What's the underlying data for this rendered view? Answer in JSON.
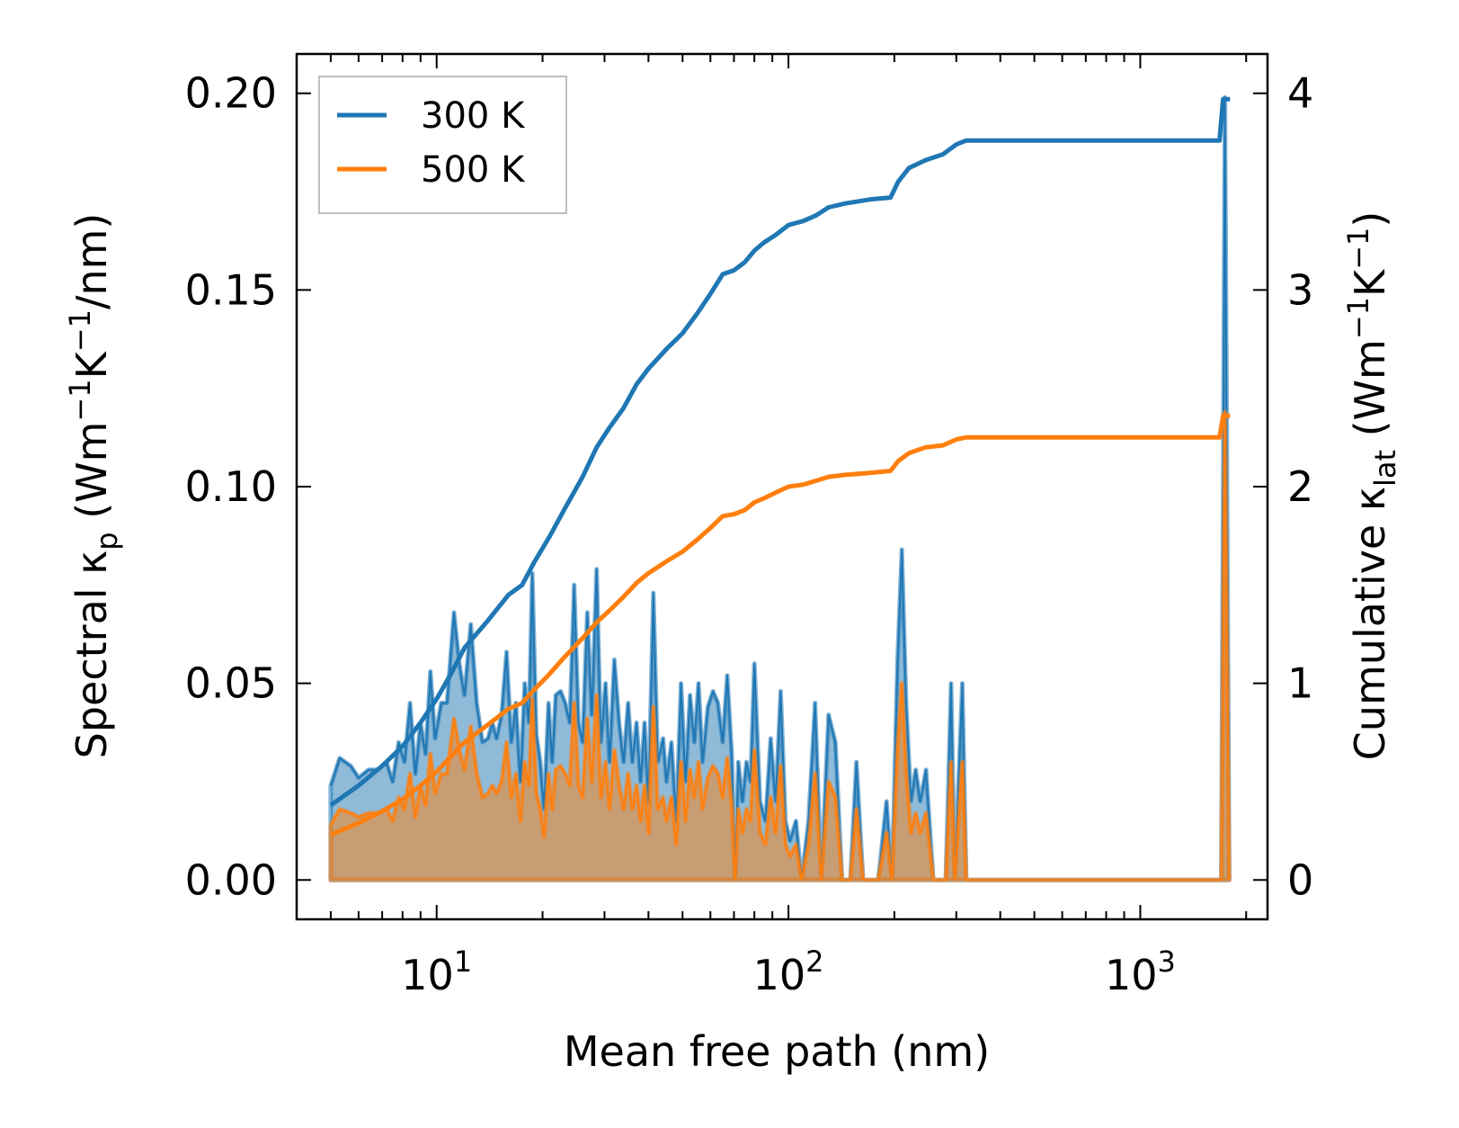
{
  "chart_data": {
    "type": "line",
    "xlabel": "Mean free path (nm)",
    "xscale": "log",
    "xlim": [
      4.0,
      2300
    ],
    "x_ticks": [
      {
        "value": 10,
        "base": "10",
        "exp": "1"
      },
      {
        "value": 100,
        "base": "10",
        "exp": "2"
      },
      {
        "value": 1000,
        "base": "10",
        "exp": "3"
      }
    ],
    "ylabel_left": {
      "pre": "Spectral κ",
      "sub": "p",
      "mid1": " (Wm",
      "sup1": "−1",
      "mid2": "K",
      "sup2": "−1",
      "post": "/nm)"
    },
    "ylabel_right": {
      "pre": "Cumulative κ",
      "sub": "lat",
      "mid1": " (Wm",
      "sup1": "−1",
      "mid2": "K",
      "sup2": "−1",
      "post": ")"
    },
    "ylim_left": [
      -0.01,
      0.21
    ],
    "ylim_right": [
      -0.2,
      4.2
    ],
    "y_ticks_left": [
      "0.00",
      "0.05",
      "0.10",
      "0.15",
      "0.20"
    ],
    "y_ticks_right": [
      "0",
      "1",
      "2",
      "3",
      "4"
    ],
    "legend": {
      "position": "upper-left",
      "entries": [
        {
          "label": "300 K",
          "color": "#1f77b4"
        },
        {
          "label": "500 K",
          "color": "#ff7f0e"
        }
      ]
    },
    "colors": {
      "300K": "#1f77b4",
      "500K": "#ff7f0e",
      "fill_300K": "#1f77b4",
      "fill_500K": "#ff7f0e"
    },
    "spectral_300K": [
      [
        5.0,
        0.024
      ],
      [
        5.3,
        0.031
      ],
      [
        5.7,
        0.029
      ],
      [
        6.0,
        0.026
      ],
      [
        6.4,
        0.028
      ],
      [
        6.8,
        0.028
      ],
      [
        7.2,
        0.03
      ],
      [
        7.5,
        0.025
      ],
      [
        7.8,
        0.035
      ],
      [
        8.1,
        0.03
      ],
      [
        8.4,
        0.045
      ],
      [
        8.7,
        0.027
      ],
      [
        9.0,
        0.04
      ],
      [
        9.3,
        0.032
      ],
      [
        9.6,
        0.053
      ],
      [
        9.9,
        0.036
      ],
      [
        10.3,
        0.045
      ],
      [
        10.7,
        0.045
      ],
      [
        11.2,
        0.068
      ],
      [
        11.6,
        0.055
      ],
      [
        12.0,
        0.047
      ],
      [
        12.5,
        0.065
      ],
      [
        13.0,
        0.045
      ],
      [
        13.5,
        0.035
      ],
      [
        14.0,
        0.036
      ],
      [
        14.4,
        0.04
      ],
      [
        14.8,
        0.036
      ],
      [
        15.3,
        0.042
      ],
      [
        15.8,
        0.058
      ],
      [
        16.3,
        0.035
      ],
      [
        16.8,
        0.045
      ],
      [
        17.3,
        0.025
      ],
      [
        17.8,
        0.05
      ],
      [
        18.3,
        0.04
      ],
      [
        18.7,
        0.078
      ],
      [
        19.2,
        0.037
      ],
      [
        19.7,
        0.03
      ],
      [
        20.2,
        0.018
      ],
      [
        20.8,
        0.045
      ],
      [
        21.3,
        0.03
      ],
      [
        21.8,
        0.047
      ],
      [
        22.5,
        0.048
      ],
      [
        23.2,
        0.045
      ],
      [
        23.9,
        0.04
      ],
      [
        24.6,
        0.075
      ],
      [
        25.3,
        0.04
      ],
      [
        26.0,
        0.035
      ],
      [
        26.8,
        0.068
      ],
      [
        27.6,
        0.042
      ],
      [
        28.5,
        0.079
      ],
      [
        29.3,
        0.035
      ],
      [
        30.2,
        0.05
      ],
      [
        31.0,
        0.03
      ],
      [
        32.0,
        0.056
      ],
      [
        33.0,
        0.04
      ],
      [
        34.0,
        0.03
      ],
      [
        35.0,
        0.045
      ],
      [
        36.0,
        0.03
      ],
      [
        37.0,
        0.04
      ],
      [
        38.0,
        0.025
      ],
      [
        39.0,
        0.04
      ],
      [
        40.0,
        0.02
      ],
      [
        41.3,
        0.073
      ],
      [
        42.5,
        0.03
      ],
      [
        44.0,
        0.036
      ],
      [
        45.0,
        0.025
      ],
      [
        46.5,
        0.035
      ],
      [
        48.0,
        0.015
      ],
      [
        49.5,
        0.05
      ],
      [
        51.0,
        0.025
      ],
      [
        52.5,
        0.047
      ],
      [
        54.0,
        0.035
      ],
      [
        55.5,
        0.05
      ],
      [
        57.0,
        0.03
      ],
      [
        59.0,
        0.044
      ],
      [
        61.0,
        0.048
      ],
      [
        63.0,
        0.045
      ],
      [
        65.0,
        0.035
      ],
      [
        67.0,
        0.052
      ],
      [
        69.0,
        0.032
      ],
      [
        70.5,
        0.0
      ],
      [
        72.0,
        0.03
      ],
      [
        74.0,
        0.02
      ],
      [
        76.0,
        0.03
      ],
      [
        78.0,
        0.025
      ],
      [
        80.0,
        0.055
      ],
      [
        83.0,
        0.02
      ],
      [
        86.0,
        0.015
      ],
      [
        89.0,
        0.036
      ],
      [
        92.0,
        0.02
      ],
      [
        95.0,
        0.048
      ],
      [
        98.0,
        0.015
      ],
      [
        101.0,
        0.01
      ],
      [
        105.0,
        0.015
      ],
      [
        109.0,
        0.0
      ],
      [
        114.0,
        0.015
      ],
      [
        119.0,
        0.045
      ],
      [
        124.0,
        0.0
      ],
      [
        130.0,
        0.042
      ],
      [
        136.0,
        0.035
      ],
      [
        142.0,
        0.0
      ],
      [
        150.0,
        0.0
      ],
      [
        156.0,
        0.03
      ],
      [
        163.0,
        0.0
      ],
      [
        180.0,
        0.0
      ],
      [
        190.0,
        0.02
      ],
      [
        197.0,
        0.0
      ],
      [
        204.0,
        0.055
      ],
      [
        210.0,
        0.084
      ],
      [
        216.0,
        0.045
      ],
      [
        223.0,
        0.02
      ],
      [
        230.0,
        0.028
      ],
      [
        237.0,
        0.02
      ],
      [
        246.0,
        0.028
      ],
      [
        258.0,
        0.0
      ],
      [
        280.0,
        0.0
      ],
      [
        290.0,
        0.05
      ],
      [
        297.0,
        0.0
      ],
      [
        312.0,
        0.05
      ],
      [
        320.0,
        0.0
      ],
      [
        1700,
        0.0
      ],
      [
        1740,
        0.199
      ],
      [
        1790,
        0.0
      ]
    ],
    "spectral_500K": [
      [
        5.0,
        0.014
      ],
      [
        5.3,
        0.018
      ],
      [
        5.7,
        0.017
      ],
      [
        6.0,
        0.016
      ],
      [
        6.4,
        0.017
      ],
      [
        6.8,
        0.017
      ],
      [
        7.2,
        0.018
      ],
      [
        7.5,
        0.015
      ],
      [
        7.8,
        0.021
      ],
      [
        8.1,
        0.018
      ],
      [
        8.4,
        0.027
      ],
      [
        8.7,
        0.016
      ],
      [
        9.0,
        0.024
      ],
      [
        9.3,
        0.019
      ],
      [
        9.6,
        0.032
      ],
      [
        9.9,
        0.022
      ],
      [
        10.3,
        0.027
      ],
      [
        10.7,
        0.027
      ],
      [
        11.2,
        0.041
      ],
      [
        11.6,
        0.033
      ],
      [
        12.0,
        0.028
      ],
      [
        12.5,
        0.039
      ],
      [
        13.0,
        0.027
      ],
      [
        13.5,
        0.021
      ],
      [
        14.0,
        0.022
      ],
      [
        14.4,
        0.024
      ],
      [
        14.8,
        0.022
      ],
      [
        15.3,
        0.025
      ],
      [
        15.8,
        0.035
      ],
      [
        16.3,
        0.021
      ],
      [
        16.8,
        0.027
      ],
      [
        17.3,
        0.015
      ],
      [
        17.8,
        0.03
      ],
      [
        18.3,
        0.024
      ],
      [
        18.7,
        0.046
      ],
      [
        19.2,
        0.022
      ],
      [
        19.7,
        0.018
      ],
      [
        20.2,
        0.011
      ],
      [
        20.8,
        0.027
      ],
      [
        21.3,
        0.018
      ],
      [
        21.8,
        0.028
      ],
      [
        22.5,
        0.029
      ],
      [
        23.2,
        0.027
      ],
      [
        23.9,
        0.024
      ],
      [
        24.6,
        0.045
      ],
      [
        25.3,
        0.024
      ],
      [
        26.0,
        0.021
      ],
      [
        26.8,
        0.041
      ],
      [
        27.6,
        0.025
      ],
      [
        28.5,
        0.047
      ],
      [
        29.3,
        0.021
      ],
      [
        30.2,
        0.03
      ],
      [
        31.0,
        0.018
      ],
      [
        32.0,
        0.033
      ],
      [
        33.0,
        0.024
      ],
      [
        34.0,
        0.018
      ],
      [
        35.0,
        0.027
      ],
      [
        36.0,
        0.018
      ],
      [
        37.0,
        0.024
      ],
      [
        38.0,
        0.015
      ],
      [
        39.0,
        0.024
      ],
      [
        40.0,
        0.012
      ],
      [
        41.3,
        0.044
      ],
      [
        42.5,
        0.018
      ],
      [
        44.0,
        0.021
      ],
      [
        45.0,
        0.015
      ],
      [
        46.5,
        0.021
      ],
      [
        48.0,
        0.009
      ],
      [
        49.5,
        0.03
      ],
      [
        51.0,
        0.015
      ],
      [
        52.5,
        0.028
      ],
      [
        54.0,
        0.021
      ],
      [
        55.5,
        0.03
      ],
      [
        57.0,
        0.018
      ],
      [
        59.0,
        0.026
      ],
      [
        61.0,
        0.029
      ],
      [
        63.0,
        0.027
      ],
      [
        65.0,
        0.021
      ],
      [
        67.0,
        0.031
      ],
      [
        69.0,
        0.019
      ],
      [
        70.5,
        0.0
      ],
      [
        72.0,
        0.018
      ],
      [
        74.0,
        0.012
      ],
      [
        76.0,
        0.018
      ],
      [
        78.0,
        0.015
      ],
      [
        80.0,
        0.033
      ],
      [
        83.0,
        0.012
      ],
      [
        86.0,
        0.009
      ],
      [
        89.0,
        0.021
      ],
      [
        92.0,
        0.012
      ],
      [
        95.0,
        0.029
      ],
      [
        98.0,
        0.009
      ],
      [
        101.0,
        0.006
      ],
      [
        105.0,
        0.009
      ],
      [
        109.0,
        0.0
      ],
      [
        114.0,
        0.009
      ],
      [
        119.0,
        0.027
      ],
      [
        124.0,
        0.0
      ],
      [
        130.0,
        0.025
      ],
      [
        136.0,
        0.021
      ],
      [
        142.0,
        0.0
      ],
      [
        150.0,
        0.0
      ],
      [
        156.0,
        0.018
      ],
      [
        163.0,
        0.0
      ],
      [
        180.0,
        0.0
      ],
      [
        190.0,
        0.012
      ],
      [
        197.0,
        0.0
      ],
      [
        204.0,
        0.033
      ],
      [
        210.0,
        0.05
      ],
      [
        216.0,
        0.027
      ],
      [
        223.0,
        0.012
      ],
      [
        230.0,
        0.017
      ],
      [
        237.0,
        0.012
      ],
      [
        246.0,
        0.017
      ],
      [
        258.0,
        0.0
      ],
      [
        280.0,
        0.0
      ],
      [
        290.0,
        0.03
      ],
      [
        297.0,
        0.0
      ],
      [
        312.0,
        0.03
      ],
      [
        320.0,
        0.0
      ],
      [
        1700,
        0.0
      ],
      [
        1740,
        0.119
      ],
      [
        1790,
        0.0
      ]
    ],
    "cumulative_300K": [
      [
        5.0,
        0.38
      ],
      [
        6.0,
        0.48
      ],
      [
        7.0,
        0.58
      ],
      [
        8.0,
        0.68
      ],
      [
        9.0,
        0.8
      ],
      [
        10.0,
        0.92
      ],
      [
        11.0,
        1.05
      ],
      [
        12.0,
        1.18
      ],
      [
        14.0,
        1.32
      ],
      [
        16.0,
        1.45
      ],
      [
        17.5,
        1.5
      ],
      [
        19.0,
        1.62
      ],
      [
        21.0,
        1.75
      ],
      [
        23.0,
        1.88
      ],
      [
        26.0,
        2.05
      ],
      [
        28.5,
        2.2
      ],
      [
        31.0,
        2.3
      ],
      [
        34.0,
        2.4
      ],
      [
        37.0,
        2.52
      ],
      [
        40.0,
        2.6
      ],
      [
        45.0,
        2.7
      ],
      [
        50.0,
        2.78
      ],
      [
        55.0,
        2.88
      ],
      [
        60.0,
        2.98
      ],
      [
        65.0,
        3.08
      ],
      [
        70.0,
        3.1
      ],
      [
        75.0,
        3.14
      ],
      [
        80.0,
        3.2
      ],
      [
        85.0,
        3.24
      ],
      [
        92.0,
        3.28
      ],
      [
        100.0,
        3.33
      ],
      [
        110.0,
        3.35
      ],
      [
        120.0,
        3.38
      ],
      [
        130.0,
        3.42
      ],
      [
        145.0,
        3.44
      ],
      [
        170.0,
        3.46
      ],
      [
        195.0,
        3.47
      ],
      [
        205.0,
        3.55
      ],
      [
        220.0,
        3.62
      ],
      [
        245.0,
        3.66
      ],
      [
        275.0,
        3.69
      ],
      [
        300.0,
        3.74
      ],
      [
        320.0,
        3.76
      ],
      [
        1680,
        3.76
      ],
      [
        1720,
        3.97
      ],
      [
        1800,
        3.97
      ]
    ],
    "cumulative_500K": [
      [
        5.0,
        0.23
      ],
      [
        6.0,
        0.29
      ],
      [
        7.0,
        0.35
      ],
      [
        8.0,
        0.41
      ],
      [
        9.0,
        0.48
      ],
      [
        10.0,
        0.55
      ],
      [
        11.0,
        0.63
      ],
      [
        12.0,
        0.7
      ],
      [
        14.0,
        0.79
      ],
      [
        16.0,
        0.87
      ],
      [
        17.5,
        0.9
      ],
      [
        19.0,
        0.97
      ],
      [
        21.0,
        1.05
      ],
      [
        23.0,
        1.13
      ],
      [
        26.0,
        1.23
      ],
      [
        28.5,
        1.31
      ],
      [
        31.0,
        1.37
      ],
      [
        34.0,
        1.44
      ],
      [
        37.0,
        1.51
      ],
      [
        40.0,
        1.56
      ],
      [
        45.0,
        1.62
      ],
      [
        50.0,
        1.67
      ],
      [
        55.0,
        1.73
      ],
      [
        60.0,
        1.79
      ],
      [
        65.0,
        1.85
      ],
      [
        70.0,
        1.86
      ],
      [
        75.0,
        1.88
      ],
      [
        80.0,
        1.92
      ],
      [
        85.0,
        1.94
      ],
      [
        92.0,
        1.97
      ],
      [
        100.0,
        2.0
      ],
      [
        110.0,
        2.01
      ],
      [
        120.0,
        2.03
      ],
      [
        130.0,
        2.05
      ],
      [
        145.0,
        2.06
      ],
      [
        170.0,
        2.07
      ],
      [
        195.0,
        2.08
      ],
      [
        205.0,
        2.13
      ],
      [
        220.0,
        2.17
      ],
      [
        245.0,
        2.2
      ],
      [
        275.0,
        2.21
      ],
      [
        300.0,
        2.24
      ],
      [
        320.0,
        2.25
      ],
      [
        1680,
        2.25
      ],
      [
        1720,
        2.36
      ],
      [
        1800,
        2.36
      ]
    ]
  }
}
